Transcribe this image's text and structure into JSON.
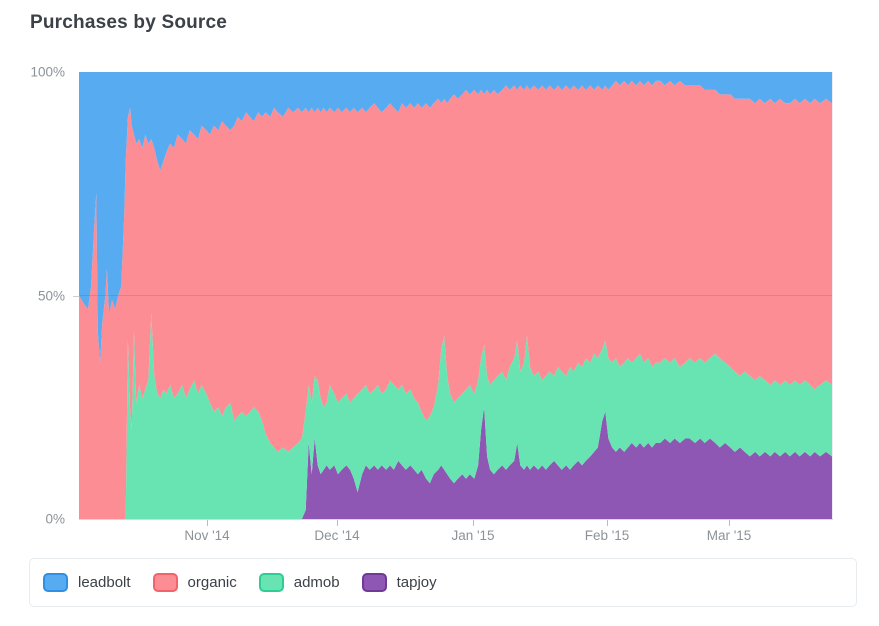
{
  "page": {
    "title": "Purchases by Source"
  },
  "colors": {
    "leadbolt": "#57abf0",
    "organic": "#fc8d95",
    "admob": "#68e4b2",
    "tapjoy": "#8d57b3"
  },
  "legend": {
    "items": [
      {
        "label": "leadbolt",
        "fill": "#57abf0",
        "border": "#2e8fe4"
      },
      {
        "label": "organic",
        "fill": "#fc8d95",
        "border": "#f4626c"
      },
      {
        "label": "admob",
        "fill": "#68e4b2",
        "border": "#2ecd95"
      },
      {
        "label": "tapjoy",
        "fill": "#8d57b3",
        "border": "#6e3a96"
      }
    ]
  },
  "chart_data": {
    "type": "area",
    "stacked": true,
    "normalized_percent": true,
    "title": "Purchases by Source",
    "ylabel": "",
    "xlabel": "",
    "ylim": [
      0,
      100
    ],
    "grid": "50% horizontal line only",
    "legend_position": "bottom",
    "y_ticks": [
      {
        "label": "0%",
        "value": 0
      },
      {
        "label": "50%",
        "value": 50
      },
      {
        "label": "100%",
        "value": 100
      }
    ],
    "x_ticks": [
      {
        "label": "Nov '14",
        "pos": 0.17
      },
      {
        "label": "Dec '14",
        "pos": 0.343
      },
      {
        "label": "Jan '15",
        "pos": 0.523
      },
      {
        "label": "Feb '15",
        "pos": 0.701
      },
      {
        "label": "Mar '15",
        "pos": 0.863
      }
    ],
    "stack_order_bottom_to_top": [
      "tapjoy",
      "admob",
      "organic",
      "leadbolt"
    ],
    "points_format": [
      "x_fraction_of_axis",
      "tapjoy_pct",
      "admob_pct",
      "organic_pct",
      "leadbolt_pct"
    ],
    "points": [
      [
        0.0,
        0,
        0,
        50,
        50
      ],
      [
        0.007,
        0,
        0,
        48,
        52
      ],
      [
        0.012,
        0,
        0,
        47,
        53
      ],
      [
        0.016,
        0,
        0,
        52,
        48
      ],
      [
        0.02,
        0,
        0,
        65,
        35
      ],
      [
        0.023,
        0,
        0,
        73,
        27
      ],
      [
        0.025,
        0,
        0,
        42,
        58
      ],
      [
        0.028,
        0,
        0,
        35,
        65
      ],
      [
        0.031,
        0,
        0,
        44,
        56
      ],
      [
        0.035,
        0,
        0,
        50,
        50
      ],
      [
        0.037,
        0,
        0,
        56,
        44
      ],
      [
        0.04,
        0,
        0,
        46,
        54
      ],
      [
        0.044,
        0,
        0,
        49,
        51
      ],
      [
        0.048,
        0,
        0,
        47,
        53
      ],
      [
        0.052,
        0,
        0,
        50,
        50
      ],
      [
        0.056,
        0,
        0,
        52,
        48
      ],
      [
        0.06,
        0,
        0,
        68,
        32
      ],
      [
        0.062,
        0,
        0,
        80,
        20
      ],
      [
        0.065,
        0,
        40,
        50,
        10
      ],
      [
        0.068,
        0,
        24,
        68,
        8
      ],
      [
        0.07,
        0,
        20,
        68,
        12
      ],
      [
        0.073,
        0,
        42,
        44,
        14
      ],
      [
        0.076,
        0,
        26,
        58,
        16
      ],
      [
        0.08,
        0,
        30,
        55,
        15
      ],
      [
        0.084,
        0,
        27,
        56,
        17
      ],
      [
        0.088,
        0,
        29,
        57,
        14
      ],
      [
        0.092,
        0,
        31,
        53,
        16
      ],
      [
        0.096,
        0,
        46,
        39,
        15
      ],
      [
        0.1,
        0,
        32,
        51,
        17
      ],
      [
        0.104,
        0,
        28,
        52,
        20
      ],
      [
        0.108,
        0,
        27,
        51,
        22
      ],
      [
        0.112,
        0,
        29,
        51,
        20
      ],
      [
        0.116,
        0,
        28,
        54,
        18
      ],
      [
        0.121,
        0,
        30,
        54,
        16
      ],
      [
        0.126,
        0,
        27,
        56,
        17
      ],
      [
        0.131,
        0,
        28,
        58,
        14
      ],
      [
        0.137,
        0,
        30,
        55,
        15
      ],
      [
        0.142,
        0,
        27,
        57,
        16
      ],
      [
        0.147,
        0,
        29,
        58,
        13
      ],
      [
        0.153,
        0,
        31,
        55,
        14
      ],
      [
        0.158,
        0,
        28,
        57,
        15
      ],
      [
        0.163,
        0,
        30,
        58,
        12
      ],
      [
        0.169,
        0,
        28,
        59,
        13
      ],
      [
        0.174,
        0,
        26,
        60,
        14
      ],
      [
        0.179,
        0,
        24,
        64,
        12
      ],
      [
        0.185,
        0,
        25,
        62,
        13
      ],
      [
        0.19,
        0,
        23,
        66,
        11
      ],
      [
        0.195,
        0,
        25,
        63,
        12
      ],
      [
        0.201,
        0,
        26,
        61,
        13
      ],
      [
        0.206,
        0,
        22,
        66,
        12
      ],
      [
        0.211,
        0,
        23,
        67,
        10
      ],
      [
        0.216,
        0,
        24,
        65,
        11
      ],
      [
        0.222,
        0,
        23,
        68,
        9
      ],
      [
        0.227,
        0,
        24,
        66,
        10
      ],
      [
        0.232,
        0,
        25,
        64,
        11
      ],
      [
        0.238,
        0,
        24,
        67,
        9
      ],
      [
        0.243,
        0,
        22,
        68,
        10
      ],
      [
        0.248,
        0,
        19,
        72,
        9
      ],
      [
        0.254,
        0,
        17,
        73,
        10
      ],
      [
        0.259,
        0,
        16,
        76,
        8
      ],
      [
        0.264,
        0,
        15,
        76,
        9
      ],
      [
        0.271,
        0,
        16,
        74,
        10
      ],
      [
        0.278,
        0,
        15,
        77,
        8
      ],
      [
        0.284,
        0,
        16,
        75,
        9
      ],
      [
        0.291,
        0,
        17,
        75,
        8
      ],
      [
        0.296,
        0,
        18,
        73,
        9
      ],
      [
        0.301,
        2,
        22,
        68,
        8
      ],
      [
        0.305,
        17,
        13,
        61,
        9
      ],
      [
        0.309,
        10,
        16,
        66,
        8
      ],
      [
        0.313,
        18,
        14,
        59,
        9
      ],
      [
        0.317,
        12,
        19,
        61,
        8
      ],
      [
        0.321,
        10,
        17,
        64,
        9
      ],
      [
        0.325,
        11,
        14,
        67,
        8
      ],
      [
        0.329,
        12,
        14,
        65,
        9
      ],
      [
        0.333,
        11,
        19,
        62,
        8
      ],
      [
        0.339,
        12,
        16,
        63,
        9
      ],
      [
        0.344,
        10,
        16,
        66,
        8
      ],
      [
        0.349,
        11,
        16,
        64,
        9
      ],
      [
        0.355,
        12,
        16,
        64,
        8
      ],
      [
        0.36,
        11,
        15,
        65,
        9
      ],
      [
        0.365,
        9,
        18,
        65,
        8
      ],
      [
        0.37,
        6,
        22,
        63,
        9
      ],
      [
        0.376,
        10,
        19,
        63,
        8
      ],
      [
        0.381,
        12,
        18,
        61,
        9
      ],
      [
        0.386,
        11,
        17,
        64,
        8
      ],
      [
        0.392,
        12,
        17,
        64,
        7
      ],
      [
        0.397,
        11,
        19,
        62,
        8
      ],
      [
        0.402,
        12,
        16,
        63,
        9
      ],
      [
        0.408,
        11,
        18,
        63,
        8
      ],
      [
        0.413,
        12,
        19,
        62,
        7
      ],
      [
        0.418,
        11,
        19,
        62,
        8
      ],
      [
        0.424,
        13,
        16,
        62,
        9
      ],
      [
        0.429,
        12,
        18,
        63,
        7
      ],
      [
        0.434,
        11,
        17,
        64,
        8
      ],
      [
        0.44,
        12,
        17,
        64,
        7
      ],
      [
        0.445,
        11,
        16,
        65,
        8
      ],
      [
        0.45,
        10,
        16,
        67,
        7
      ],
      [
        0.455,
        11,
        13,
        68,
        8
      ],
      [
        0.461,
        9,
        13,
        71,
        7
      ],
      [
        0.466,
        8,
        15,
        69,
        8
      ],
      [
        0.471,
        10,
        15,
        68,
        7
      ],
      [
        0.477,
        11,
        19,
        64,
        6
      ],
      [
        0.481,
        12,
        26,
        55,
        7
      ],
      [
        0.485,
        11,
        30,
        53,
        6
      ],
      [
        0.489,
        10,
        22,
        61,
        7
      ],
      [
        0.493,
        9,
        19,
        66,
        6
      ],
      [
        0.498,
        8,
        18,
        69,
        5
      ],
      [
        0.503,
        9,
        18,
        67,
        6
      ],
      [
        0.509,
        10,
        18,
        67,
        5
      ],
      [
        0.514,
        9,
        20,
        67,
        4
      ],
      [
        0.519,
        10,
        20,
        65,
        5
      ],
      [
        0.525,
        9,
        19,
        68,
        4
      ],
      [
        0.53,
        12,
        19,
        64,
        5
      ],
      [
        0.534,
        20,
        16,
        60,
        4
      ],
      [
        0.538,
        25,
        14,
        56,
        5
      ],
      [
        0.542,
        14,
        18,
        64,
        4
      ],
      [
        0.546,
        11,
        19,
        65,
        5
      ],
      [
        0.551,
        10,
        21,
        65,
        4
      ],
      [
        0.556,
        11,
        21,
        63,
        5
      ],
      [
        0.562,
        12,
        21,
        63,
        4
      ],
      [
        0.567,
        11,
        20,
        66,
        3
      ],
      [
        0.572,
        12,
        22,
        62,
        4
      ],
      [
        0.578,
        13,
        23,
        61,
        3
      ],
      [
        0.582,
        17,
        23,
        56,
        4
      ],
      [
        0.586,
        12,
        21,
        64,
        3
      ],
      [
        0.591,
        11,
        24,
        61,
        4
      ],
      [
        0.595,
        12,
        29,
        56,
        3
      ],
      [
        0.599,
        11,
        23,
        62,
        4
      ],
      [
        0.604,
        12,
        20,
        65,
        3
      ],
      [
        0.61,
        11,
        22,
        63,
        4
      ],
      [
        0.615,
        12,
        19,
        66,
        3
      ],
      [
        0.62,
        11,
        21,
        64,
        4
      ],
      [
        0.625,
        12,
        21,
        64,
        3
      ],
      [
        0.631,
        13,
        19,
        64,
        4
      ],
      [
        0.636,
        12,
        22,
        63,
        3
      ],
      [
        0.641,
        11,
        22,
        63,
        4
      ],
      [
        0.647,
        12,
        20,
        65,
        3
      ],
      [
        0.652,
        11,
        23,
        62,
        4
      ],
      [
        0.657,
        12,
        21,
        64,
        3
      ],
      [
        0.663,
        13,
        22,
        61,
        4
      ],
      [
        0.668,
        12,
        22,
        63,
        3
      ],
      [
        0.673,
        13,
        23,
        60,
        4
      ],
      [
        0.679,
        14,
        21,
        62,
        3
      ],
      [
        0.684,
        15,
        22,
        59,
        4
      ],
      [
        0.689,
        16,
        20,
        61,
        3
      ],
      [
        0.695,
        22,
        16,
        58,
        4
      ],
      [
        0.699,
        24,
        16,
        57,
        3
      ],
      [
        0.703,
        18,
        18,
        60,
        4
      ],
      [
        0.708,
        16,
        19,
        62,
        3
      ],
      [
        0.713,
        15,
        21,
        62,
        2
      ],
      [
        0.718,
        16,
        18,
        63,
        3
      ],
      [
        0.724,
        15,
        20,
        63,
        2
      ],
      [
        0.729,
        16,
        20,
        61,
        3
      ],
      [
        0.734,
        17,
        18,
        63,
        2
      ],
      [
        0.74,
        16,
        20,
        61,
        3
      ],
      [
        0.745,
        17,
        20,
        61,
        2
      ],
      [
        0.75,
        16,
        19,
        62,
        3
      ],
      [
        0.756,
        17,
        19,
        62,
        2
      ],
      [
        0.761,
        16,
        18,
        63,
        3
      ],
      [
        0.766,
        17,
        18,
        63,
        2
      ],
      [
        0.772,
        17,
        18,
        63,
        2
      ],
      [
        0.778,
        18,
        18,
        61,
        3
      ],
      [
        0.785,
        17,
        18,
        63,
        2
      ],
      [
        0.791,
        18,
        18,
        61,
        3
      ],
      [
        0.798,
        17,
        17,
        64,
        2
      ],
      [
        0.805,
        18,
        17,
        62,
        3
      ],
      [
        0.811,
        18,
        18,
        61,
        3
      ],
      [
        0.818,
        17,
        18,
        62,
        3
      ],
      [
        0.825,
        18,
        18,
        61,
        3
      ],
      [
        0.831,
        17,
        18,
        61,
        4
      ],
      [
        0.838,
        18,
        18,
        60,
        4
      ],
      [
        0.845,
        17,
        20,
        59,
        4
      ],
      [
        0.851,
        16,
        20,
        59,
        5
      ],
      [
        0.858,
        17,
        18,
        60,
        5
      ],
      [
        0.865,
        16,
        18,
        61,
        5
      ],
      [
        0.871,
        15,
        18,
        61,
        6
      ],
      [
        0.878,
        16,
        16,
        62,
        6
      ],
      [
        0.884,
        15,
        18,
        61,
        6
      ],
      [
        0.891,
        14,
        18,
        62,
        6
      ],
      [
        0.898,
        15,
        16,
        62,
        7
      ],
      [
        0.904,
        14,
        18,
        62,
        6
      ],
      [
        0.911,
        15,
        16,
        62,
        7
      ],
      [
        0.918,
        14,
        16,
        64,
        6
      ],
      [
        0.924,
        15,
        16,
        62,
        7
      ],
      [
        0.931,
        14,
        16,
        64,
        6
      ],
      [
        0.938,
        15,
        16,
        62,
        7
      ],
      [
        0.944,
        14,
        16,
        63,
        7
      ],
      [
        0.951,
        15,
        16,
        63,
        6
      ],
      [
        0.957,
        14,
        16,
        63,
        7
      ],
      [
        0.964,
        15,
        16,
        63,
        6
      ],
      [
        0.971,
        14,
        16,
        63,
        7
      ],
      [
        0.977,
        15,
        14,
        65,
        6
      ],
      [
        0.984,
        14,
        16,
        63,
        7
      ],
      [
        0.992,
        15,
        16,
        63,
        6
      ],
      [
        1.0,
        14,
        16,
        63,
        7
      ]
    ]
  }
}
